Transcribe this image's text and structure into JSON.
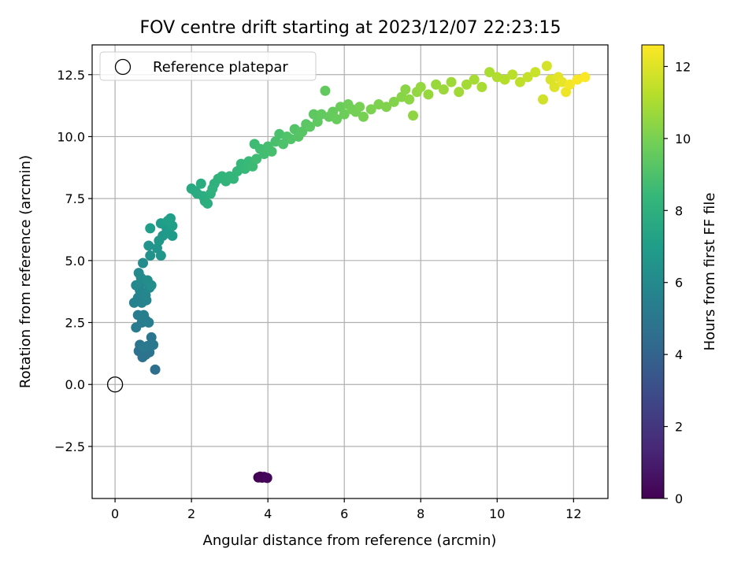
{
  "chart_data": {
    "type": "scatter",
    "title": "FOV centre drift starting at 2023/12/07 22:23:15",
    "xlabel": "Angular distance from reference (arcmin)",
    "ylabel": "Rotation from reference (arcmin)",
    "xlim": [
      -0.6,
      12.9
    ],
    "ylim": [
      -4.6,
      13.7
    ],
    "xticks": [
      0,
      2,
      4,
      6,
      8,
      10,
      12
    ],
    "yticks": [
      -2.5,
      0.0,
      2.5,
      5.0,
      7.5,
      10.0,
      12.5
    ],
    "xtick_labels": [
      "0",
      "2",
      "4",
      "6",
      "8",
      "10",
      "12"
    ],
    "ytick_labels": [
      "−2.5",
      "0.0",
      "2.5",
      "5.0",
      "7.5",
      "10.0",
      "12.5"
    ],
    "grid": true,
    "legend": {
      "placement": "upper-left",
      "entries": [
        "Reference platepar"
      ]
    },
    "reference_point": {
      "x": 0,
      "y": 0
    },
    "colorbar": {
      "label": "Hours from first FF file",
      "range": [
        0,
        12.6
      ],
      "ticks": [
        0,
        2,
        4,
        6,
        8,
        10,
        12
      ],
      "tick_labels": [
        "0",
        "2",
        "4",
        "6",
        "8",
        "10",
        "12"
      ],
      "colormap": "viridis",
      "colors": [
        "#440154",
        "#482878",
        "#3e4989",
        "#31688e",
        "#26828e",
        "#1f9e89",
        "#35b779",
        "#6ece58",
        "#b5de2b",
        "#fde725"
      ]
    },
    "points": [
      [
        3.75,
        -3.75,
        0.0
      ],
      [
        3.8,
        -3.72,
        0.05
      ],
      [
        3.85,
        -3.76,
        0.1
      ],
      [
        3.9,
        -3.73,
        0.15
      ],
      [
        3.98,
        -3.77,
        0.2
      ],
      [
        1.05,
        0.6,
        4.6
      ],
      [
        0.62,
        1.35,
        4.7
      ],
      [
        0.72,
        1.1,
        4.75
      ],
      [
        0.8,
        1.2,
        4.8
      ],
      [
        0.9,
        1.3,
        4.85
      ],
      [
        0.95,
        1.9,
        4.9
      ],
      [
        0.65,
        1.6,
        4.95
      ],
      [
        0.85,
        1.55,
        5.0
      ],
      [
        1.0,
        1.6,
        5.05
      ],
      [
        0.75,
        1.5,
        5.1
      ],
      [
        0.55,
        2.3,
        5.2
      ],
      [
        0.6,
        2.8,
        5.25
      ],
      [
        0.7,
        2.5,
        5.3
      ],
      [
        0.8,
        2.6,
        5.35
      ],
      [
        0.88,
        2.5,
        5.4
      ],
      [
        0.75,
        2.8,
        5.45
      ],
      [
        0.5,
        3.3,
        5.55
      ],
      [
        0.6,
        3.5,
        5.6
      ],
      [
        0.7,
        3.3,
        5.65
      ],
      [
        0.82,
        3.4,
        5.7
      ],
      [
        0.65,
        3.8,
        5.75
      ],
      [
        0.7,
        4.1,
        5.8
      ],
      [
        0.8,
        3.6,
        5.85
      ],
      [
        0.55,
        4.0,
        5.9
      ],
      [
        0.9,
        3.9,
        5.95
      ],
      [
        0.62,
        4.5,
        6.0
      ],
      [
        0.68,
        4.3,
        6.05
      ],
      [
        0.73,
        4.9,
        6.1
      ],
      [
        0.85,
        4.2,
        6.15
      ],
      [
        0.95,
        4.0,
        6.2
      ],
      [
        0.92,
        5.2,
        6.4
      ],
      [
        0.88,
        5.6,
        6.5
      ],
      [
        1.1,
        5.5,
        6.55
      ],
      [
        1.2,
        5.2,
        6.6
      ],
      [
        1.15,
        5.8,
        6.65
      ],
      [
        1.25,
        6.0,
        6.7
      ],
      [
        1.35,
        6.3,
        6.75
      ],
      [
        1.4,
        6.1,
        6.8
      ],
      [
        1.5,
        6.0,
        6.85
      ],
      [
        1.3,
        6.5,
        6.9
      ],
      [
        1.2,
        6.5,
        6.95
      ],
      [
        0.92,
        6.3,
        7.0
      ],
      [
        1.45,
        6.7,
        7.0
      ],
      [
        1.5,
        6.4,
        7.05
      ],
      [
        1.38,
        6.6,
        7.1
      ],
      [
        2.0,
        7.9,
        7.6
      ],
      [
        2.1,
        7.8,
        7.65
      ],
      [
        2.15,
        7.7,
        7.7
      ],
      [
        2.25,
        8.1,
        7.75
      ],
      [
        2.3,
        7.6,
        7.8
      ],
      [
        2.35,
        7.4,
        7.85
      ],
      [
        2.42,
        7.3,
        7.9
      ],
      [
        2.5,
        7.7,
        7.95
      ],
      [
        2.6,
        8.1,
        8.0
      ],
      [
        2.55,
        7.9,
        8.05
      ],
      [
        2.7,
        8.3,
        8.1
      ],
      [
        2.8,
        8.4,
        8.15
      ],
      [
        2.9,
        8.2,
        8.2
      ],
      [
        3.0,
        8.4,
        8.25
      ],
      [
        3.1,
        8.3,
        8.3
      ],
      [
        3.2,
        8.6,
        8.35
      ],
      [
        3.3,
        8.9,
        8.4
      ],
      [
        3.4,
        8.7,
        8.45
      ],
      [
        3.5,
        9.0,
        8.5
      ],
      [
        3.6,
        8.8,
        8.55
      ],
      [
        3.65,
        9.7,
        8.6
      ],
      [
        3.7,
        9.1,
        8.65
      ],
      [
        3.8,
        9.5,
        8.7
      ],
      [
        3.9,
        9.3,
        8.75
      ],
      [
        4.0,
        9.6,
        8.8
      ],
      [
        4.1,
        9.4,
        8.85
      ],
      [
        4.2,
        9.8,
        8.9
      ],
      [
        4.3,
        10.1,
        8.95
      ],
      [
        4.4,
        9.7,
        9.0
      ],
      [
        4.5,
        10.0,
        9.05
      ],
      [
        4.6,
        9.9,
        9.1
      ],
      [
        4.7,
        10.3,
        9.15
      ],
      [
        4.8,
        10.0,
        9.2
      ],
      [
        4.9,
        10.2,
        9.25
      ],
      [
        5.0,
        10.5,
        9.3
      ],
      [
        5.1,
        10.4,
        9.35
      ],
      [
        5.2,
        10.9,
        9.4
      ],
      [
        5.3,
        10.6,
        9.45
      ],
      [
        5.4,
        10.9,
        9.5
      ],
      [
        5.5,
        11.85,
        9.5
      ],
      [
        5.6,
        10.8,
        9.55
      ],
      [
        5.7,
        11.0,
        9.6
      ],
      [
        5.8,
        10.7,
        9.65
      ],
      [
        5.9,
        11.2,
        9.7
      ],
      [
        6.0,
        10.9,
        9.75
      ],
      [
        6.1,
        11.3,
        9.8
      ],
      [
        6.2,
        11.1,
        9.85
      ],
      [
        6.3,
        11.0,
        9.9
      ],
      [
        6.4,
        11.2,
        9.95
      ],
      [
        6.5,
        10.8,
        10.0
      ],
      [
        6.7,
        11.1,
        10.05
      ],
      [
        6.9,
        11.3,
        10.1
      ],
      [
        7.1,
        11.2,
        10.15
      ],
      [
        7.3,
        11.4,
        10.2
      ],
      [
        7.5,
        11.6,
        10.3
      ],
      [
        7.6,
        11.9,
        10.35
      ],
      [
        7.7,
        11.5,
        10.4
      ],
      [
        7.8,
        10.85,
        10.45
      ],
      [
        7.9,
        11.8,
        10.5
      ],
      [
        8.0,
        12.0,
        10.55
      ],
      [
        8.2,
        11.7,
        10.6
      ],
      [
        8.4,
        12.1,
        10.65
      ],
      [
        8.6,
        11.9,
        10.7
      ],
      [
        8.8,
        12.2,
        10.75
      ],
      [
        9.0,
        11.8,
        10.8
      ],
      [
        9.2,
        12.1,
        10.85
      ],
      [
        9.4,
        12.3,
        10.9
      ],
      [
        9.6,
        12.0,
        10.95
      ],
      [
        9.8,
        12.6,
        11.0
      ],
      [
        10.0,
        12.4,
        11.1
      ],
      [
        10.2,
        12.3,
        11.2
      ],
      [
        10.4,
        12.5,
        11.3
      ],
      [
        10.6,
        12.2,
        11.4
      ],
      [
        10.8,
        12.4,
        11.5
      ],
      [
        11.0,
        12.6,
        11.6
      ],
      [
        11.2,
        11.5,
        11.7
      ],
      [
        11.3,
        12.85,
        11.8
      ],
      [
        11.4,
        12.3,
        11.9
      ],
      [
        11.5,
        12.0,
        12.0
      ],
      [
        11.6,
        12.4,
        12.1
      ],
      [
        11.7,
        12.2,
        12.2
      ],
      [
        11.8,
        11.8,
        12.3
      ],
      [
        11.9,
        12.1,
        12.4
      ],
      [
        12.1,
        12.3,
        12.5
      ],
      [
        12.3,
        12.4,
        12.55
      ]
    ]
  }
}
